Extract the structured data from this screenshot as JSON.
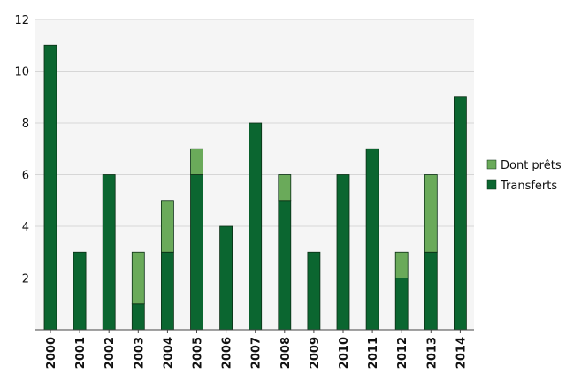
{
  "chart_data": {
    "type": "bar",
    "stacked": true,
    "categories": [
      "2000",
      "2001",
      "2002",
      "2003",
      "2004",
      "2005",
      "2006",
      "2007",
      "2008",
      "2009",
      "2010",
      "2011",
      "2012",
      "2013",
      "2014"
    ],
    "series": [
      {
        "name": "Transferts",
        "values": [
          11,
          3,
          6,
          1,
          3,
          6,
          4,
          8,
          5,
          3,
          6,
          7,
          2,
          3,
          9
        ],
        "color": "#0b6630"
      },
      {
        "name": "Dont prêts",
        "values": [
          0,
          0,
          0,
          2,
          2,
          1,
          0,
          0,
          1,
          0,
          0,
          0,
          1,
          3,
          0
        ],
        "color": "#6aaa5a"
      }
    ],
    "ylim": [
      0,
      12
    ],
    "yticks": [
      2,
      4,
      6,
      8,
      10,
      12
    ],
    "title": "",
    "xlabel": "",
    "ylabel": "",
    "grid": true,
    "legend_position": "right",
    "legend_order": [
      "Dont prêts",
      "Transferts"
    ],
    "plot_background": "#f5f5f5"
  }
}
